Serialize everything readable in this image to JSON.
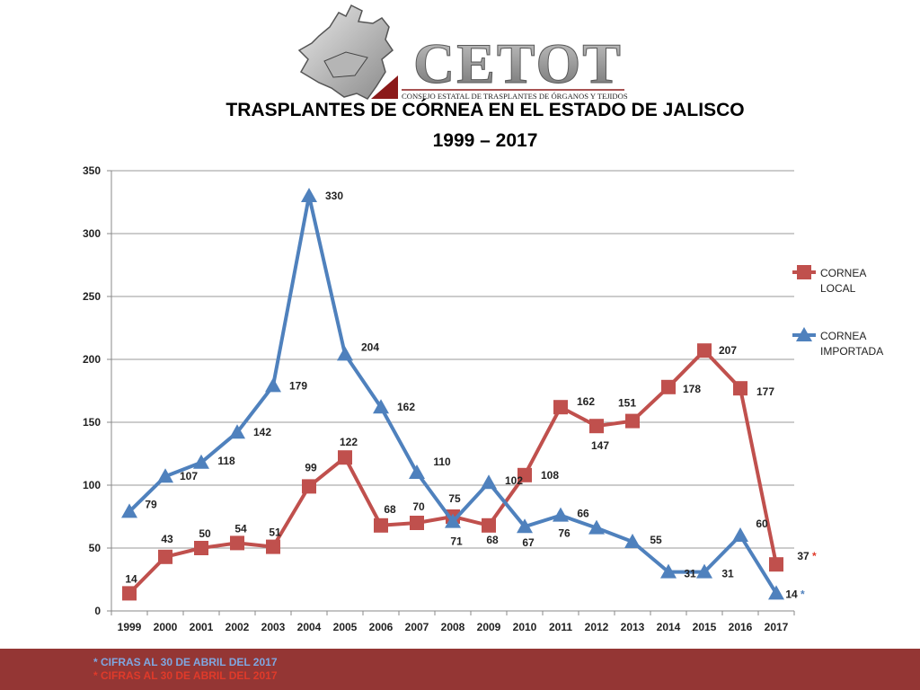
{
  "logo": {
    "name": "CETOT",
    "subtitle": "CONSEJO ESTATAL DE TRASPLANTES DE ÓRGANOS Y TEJIDOS"
  },
  "footer": {
    "notes": [
      "* CIFRAS AL 30 DE ABRIL DEL 2017",
      "* CIFRAS AL 30 DE ABRIL DEL 2017"
    ],
    "colors": [
      "#7fa7e0",
      "#e03a2a"
    ],
    "background": "#943634"
  },
  "chart_data": {
    "type": "line",
    "title": "TRASPLANTES DE CÓRNEA EN EL ESTADO DE JALISCO",
    "subtitle": "1999 – 2017",
    "xlabel": "",
    "ylabel": "",
    "x": [
      "1999",
      "2000",
      "2001",
      "2002",
      "2003",
      "2004",
      "2005",
      "2006",
      "2007",
      "2008",
      "2009",
      "2010",
      "2011",
      "2012",
      "2013",
      "2014",
      "2015",
      "2016",
      "2017"
    ],
    "ylim": [
      0,
      350
    ],
    "yticks": [
      0,
      50,
      100,
      150,
      200,
      250,
      300,
      350
    ],
    "grid": true,
    "legend_position": "right",
    "series": [
      {
        "name": "CORNEA LOCAL",
        "legend_lines": [
          "CORNEA",
          "LOCAL"
        ],
        "color": "#c0504d",
        "marker": "square",
        "values": [
          14,
          43,
          50,
          54,
          51,
          99,
          122,
          68,
          70,
          75,
          68,
          108,
          162,
          147,
          151,
          178,
          207,
          177,
          37
        ],
        "labels": [
          "14",
          "43",
          "50",
          "54",
          "51",
          "99",
          "122",
          "68",
          "70",
          "75",
          "68",
          "108",
          "162",
          "147",
          "151",
          "178",
          "207",
          "177",
          "37"
        ],
        "last_marker": "*",
        "last_marker_color": "#e03a2a"
      },
      {
        "name": "CORNEA IMPORTADA",
        "legend_lines": [
          "CORNEA",
          "IMPORTADA"
        ],
        "color": "#4f81bd",
        "marker": "triangle",
        "values": [
          79,
          107,
          118,
          142,
          179,
          330,
          204,
          162,
          110,
          71,
          102,
          67,
          76,
          66,
          55,
          31,
          31,
          60,
          14
        ],
        "labels": [
          "79",
          "107",
          "118",
          "142",
          "179",
          "330",
          "204",
          "162",
          "110",
          "71",
          "102",
          "67",
          "76",
          "66",
          "55",
          "31",
          "31",
          "60",
          "14"
        ],
        "last_marker": "*",
        "last_marker_color": "#4f81bd"
      }
    ]
  }
}
